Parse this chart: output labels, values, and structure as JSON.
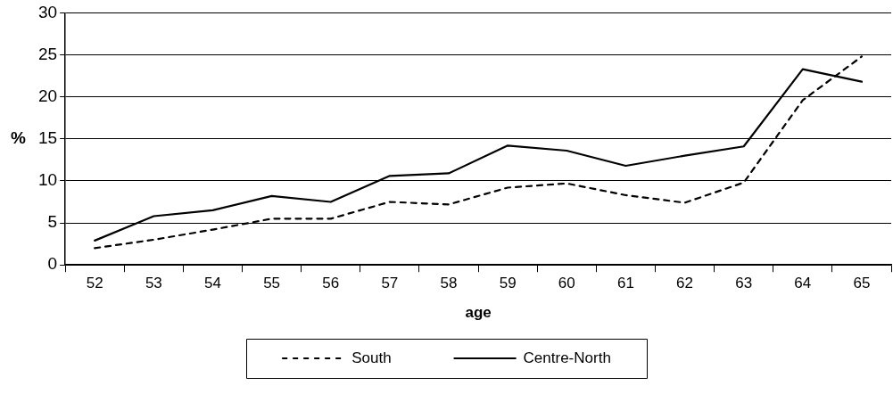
{
  "chart_data": {
    "type": "line",
    "xlabel": "age",
    "ylabel": "%",
    "categories": [
      "52",
      "53",
      "54",
      "55",
      "56",
      "57",
      "58",
      "59",
      "60",
      "61",
      "62",
      "63",
      "64",
      "65"
    ],
    "series": [
      {
        "name": "South",
        "color": "#000000",
        "line_style": "dashed",
        "values": [
          2,
          3,
          4.2,
          5.5,
          5.5,
          7.5,
          7.2,
          9.2,
          9.7,
          8.3,
          7.4,
          9.8,
          19.6,
          24.8
        ]
      },
      {
        "name": "Centre-North",
        "color": "#000000",
        "line_style": "solid",
        "values": [
          2.9,
          5.8,
          6.5,
          8.2,
          7.5,
          10.6,
          10.9,
          14.2,
          13.6,
          11.8,
          13,
          14.1,
          23.3,
          21.8
        ]
      }
    ],
    "ylim": [
      0,
      30
    ],
    "yticks": [
      0,
      5,
      10,
      15,
      20,
      25,
      30
    ],
    "grid": "y",
    "legend": "bottom",
    "marker": "none"
  }
}
